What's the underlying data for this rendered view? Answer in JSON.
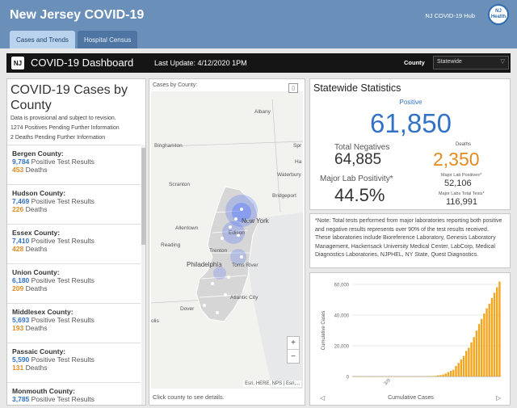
{
  "header": {
    "title": "New Jersey COVID-19",
    "hub_label": "NJ COVID-19 Hub",
    "logo_line1": "NJ",
    "logo_line2": "Health",
    "tabs": [
      {
        "label": "Cases and Trends",
        "active": true
      },
      {
        "label": "Hospital Census",
        "active": false
      }
    ]
  },
  "dashboard": {
    "badge": "NJ",
    "title": "COVID-19 Dashboard",
    "last_update": "Last Update: 4/12/2020 1PM",
    "county_label": "County",
    "county_value": "Statewide"
  },
  "cases_by_county": {
    "title": "COVID-19 Cases by County",
    "notes": [
      "Data is provisional and subject to revision.",
      "1274 Positives Pending Further Information",
      "2 Deaths Pending Further Information"
    ],
    "positive_suffix": "Positive Test Results",
    "deaths_suffix": "Deaths",
    "counties": [
      {
        "name": "Bergen County:",
        "positives": "9,784",
        "deaths": "453"
      },
      {
        "name": "Hudson County:",
        "positives": "7,469",
        "deaths": "226"
      },
      {
        "name": "Essex County:",
        "positives": "7,410",
        "deaths": "428"
      },
      {
        "name": "Union County:",
        "positives": "6,180",
        "deaths": "209"
      },
      {
        "name": "Middlesex County:",
        "positives": "5,693",
        "deaths": "193"
      },
      {
        "name": "Passaic County:",
        "positives": "5,590",
        "deaths": "131"
      },
      {
        "name": "Monmouth County:",
        "positives": "3,785",
        "deaths": ""
      }
    ]
  },
  "map": {
    "title": "Cases by County:",
    "caption": "Click county to see details.",
    "attribution": "Esri, HERE, NPS | Esri,...",
    "zoom_in": "+",
    "zoom_out": "−",
    "places": [
      "Albany",
      "Binghamton",
      "Spr",
      "Ha",
      "Waterbury",
      "Scranton",
      "Bridgeport",
      "New York",
      "Allentown",
      "Edison",
      "Reading",
      "Trenton",
      "Philadelphia",
      "Toms River",
      "Atlantic City",
      "Dover",
      "olis"
    ]
  },
  "statewide": {
    "title": "Statewide Statistics",
    "positive_label": "Positive",
    "positive_value": "61,850",
    "negatives_label": "Total Negatives",
    "negatives_value": "64,885",
    "positivity_label": "Major Lab Positivity*",
    "positivity_value": "44.5%",
    "deaths_label": "Deaths",
    "deaths_value": "2,350",
    "major_lab_positives_label": "Major Lab Positives*",
    "major_lab_positives_value": "52,106",
    "major_lab_tests_label": "Major Labs Total Tests*",
    "major_lab_tests_value": "116,991",
    "positive_color": "#3372c7",
    "deaths_color": "#e28b1f"
  },
  "note": "*Note: Total tests performed from major laboratories reporting both positive and negative results represents over 90% of the test results received. These laboratories include Bioreference Laboratory, Genesis Laboratory Management, Hackensack University Medical Center, LabCorp, Medical Diagnostics Laboratories, NJPHEL, NY State, Quest Diagnostics.",
  "chart_data": {
    "type": "bar",
    "title": "",
    "xlabel": "Cumulative Cases",
    "ylabel": "Cumulative Cases",
    "x_tick_labels": [
      "3/9"
    ],
    "ylim": [
      0,
      60000
    ],
    "yticks": [
      "0",
      "20,000",
      "40,000",
      "60,000"
    ],
    "values": [
      0,
      0,
      0,
      0,
      0,
      0,
      0,
      0,
      0,
      0,
      0,
      0,
      0,
      0,
      0,
      0,
      0,
      0,
      1,
      2,
      4,
      6,
      11,
      15,
      23,
      29,
      50,
      69,
      98,
      138,
      178,
      267,
      427,
      742,
      890,
      1327,
      1914,
      2844,
      3675,
      4402,
      6876,
      8825,
      11124,
      13386,
      16636,
      18696,
      22255,
      25590,
      29895,
      34124,
      37505,
      41090,
      44416,
      47437,
      51027,
      54588,
      58151,
      61850
    ],
    "bar_color": "#f2a51d",
    "grid": true
  }
}
